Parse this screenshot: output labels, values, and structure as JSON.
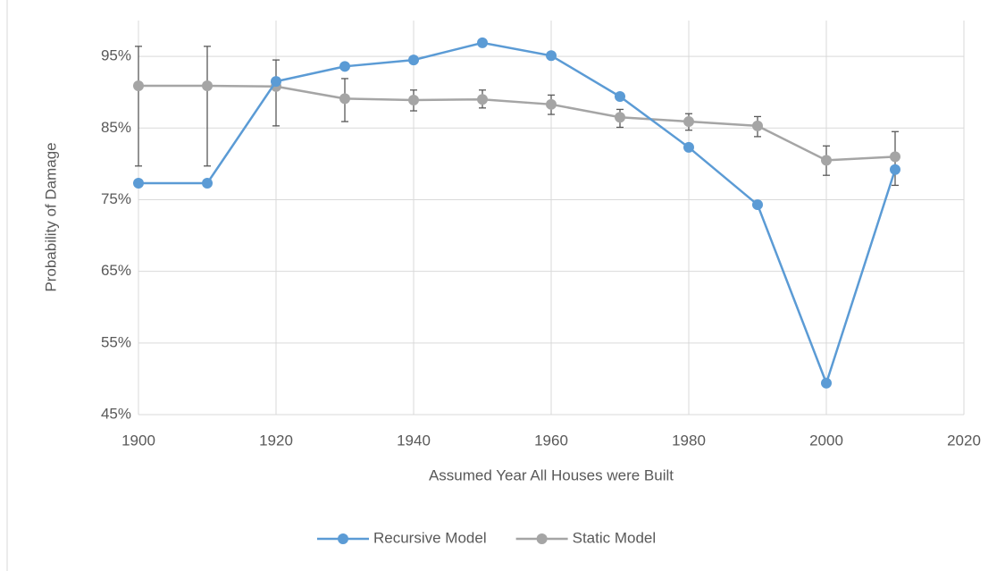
{
  "chart_data": {
    "type": "line",
    "x_label": "Assumed Year All Houses were Built",
    "y_label": "Probability of Damage",
    "x": [
      1900,
      1910,
      1920,
      1930,
      1940,
      1950,
      1960,
      1970,
      1980,
      1990,
      2000,
      2010
    ],
    "series": [
      {
        "name": "Recursive Model",
        "color": "#5b9bd5",
        "values": [
          77.3,
          77.3,
          91.5,
          93.6,
          94.5,
          96.9,
          95.1,
          89.4,
          82.3,
          74.3,
          49.4,
          79.2
        ]
      },
      {
        "name": "Static Model",
        "color": "#a5a5a5",
        "values": [
          90.9,
          90.9,
          90.8,
          89.1,
          88.9,
          89.0,
          88.3,
          86.5,
          85.9,
          85.3,
          80.5,
          81.0
        ],
        "error_minus": [
          11.2,
          11.2,
          5.5,
          3.2,
          1.5,
          1.2,
          1.4,
          1.4,
          1.2,
          1.5,
          2.1,
          4.0
        ],
        "error_plus": [
          5.5,
          5.5,
          3.7,
          2.8,
          1.4,
          1.3,
          1.3,
          1.1,
          1.1,
          1.3,
          2.0,
          3.5
        ]
      }
    ],
    "xlim": [
      1900,
      2020
    ],
    "xticks": [
      1900,
      1920,
      1940,
      1960,
      1980,
      2000,
      2020
    ],
    "ylim": [
      45,
      100
    ],
    "yticks": [
      {
        "value": 45,
        "label": "45%"
      },
      {
        "value": 55,
        "label": "55%"
      },
      {
        "value": 65,
        "label": "65%"
      },
      {
        "value": 75,
        "label": "75%"
      },
      {
        "value": 85,
        "label": "85%"
      },
      {
        "value": 95,
        "label": "95%"
      }
    ],
    "grid": true,
    "legend": "bottom"
  }
}
